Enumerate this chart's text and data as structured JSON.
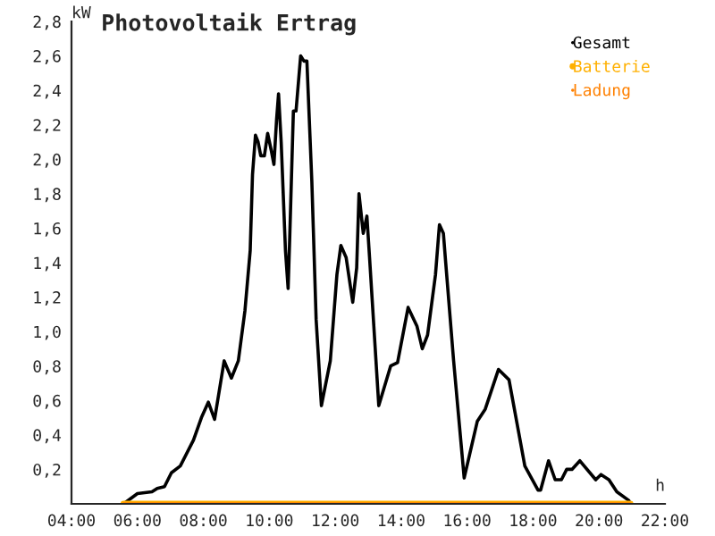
{
  "chart_data": {
    "type": "line",
    "title": "Photovoltaik Ertrag",
    "xlabel": "h",
    "ylabel": "kW",
    "series": [
      {
        "name": "Gesamt",
        "color": "#000000",
        "x": [
          5.58,
          6.0,
          6.44,
          6.6,
          6.82,
          7.03,
          7.3,
          7.7,
          7.94,
          8.15,
          8.34,
          8.63,
          8.85,
          9.06,
          9.26,
          9.42,
          9.49,
          9.58,
          9.66,
          9.74,
          9.85,
          9.95,
          10.06,
          10.14,
          10.22,
          10.28,
          10.36,
          10.49,
          10.57,
          10.62,
          10.73,
          10.81,
          10.95,
          11.05,
          11.14,
          11.29,
          11.42,
          11.58,
          11.85,
          12.05,
          12.17,
          12.33,
          12.53,
          12.65,
          12.72,
          12.85,
          12.96,
          13.04,
          13.32,
          13.68,
          13.89,
          14.21,
          14.48,
          14.64,
          14.8,
          15.04,
          15.16,
          15.28,
          15.35,
          15.59,
          15.91,
          16.31,
          16.55,
          16.95,
          17.27,
          17.75,
          18.15,
          18.23,
          18.47,
          18.67,
          18.86,
          19.02,
          19.18,
          19.42,
          19.9,
          20.06,
          20.3,
          20.54,
          20.9,
          20.95
        ],
        "values": [
          0,
          0.06,
          0.07,
          0.09,
          0.1,
          0.18,
          0.22,
          0.37,
          0.5,
          0.59,
          0.49,
          0.83,
          0.73,
          0.83,
          1.12,
          1.47,
          1.91,
          2.14,
          2.1,
          2.02,
          2.02,
          2.15,
          2.05,
          1.97,
          2.23,
          2.38,
          2.1,
          1.47,
          1.25,
          1.55,
          2.28,
          2.28,
          2.6,
          2.57,
          2.57,
          1.87,
          1.07,
          0.57,
          0.83,
          1.33,
          1.5,
          1.43,
          1.17,
          1.37,
          1.8,
          1.57,
          1.67,
          1.43,
          0.57,
          0.8,
          0.82,
          1.14,
          1.03,
          0.9,
          0.98,
          1.33,
          1.62,
          1.57,
          1.4,
          0.83,
          0.15,
          0.48,
          0.55,
          0.78,
          0.72,
          0.22,
          0.08,
          0.08,
          0.25,
          0.14,
          0.14,
          0.2,
          0.2,
          0.25,
          0.14,
          0.17,
          0.14,
          0.07,
          0.02,
          0
        ]
      },
      {
        "name": "Batterie",
        "color": "#ffb000",
        "x": [
          5.58,
          20.95
        ],
        "values": [
          0,
          0
        ]
      },
      {
        "name": "Ladung",
        "color": "#ff8000",
        "x": [
          5.58,
          20.95
        ],
        "values": [
          0,
          0
        ]
      }
    ],
    "xlim": [
      4,
      22
    ],
    "ylim": [
      0,
      2.8
    ],
    "xticks": [
      {
        "value": 4,
        "label": "04:00"
      },
      {
        "value": 6,
        "label": "06:00"
      },
      {
        "value": 8,
        "label": "08:00"
      },
      {
        "value": 10,
        "label": "10:00"
      },
      {
        "value": 12,
        "label": "12:00"
      },
      {
        "value": 14,
        "label": "14:00"
      },
      {
        "value": 16,
        "label": "16:00"
      },
      {
        "value": 18,
        "label": "18:00"
      },
      {
        "value": 20,
        "label": "20:00"
      },
      {
        "value": 22,
        "label": "22:00"
      }
    ],
    "yticks": [
      {
        "value": 0.2,
        "label": "0,2"
      },
      {
        "value": 0.4,
        "label": "0,4"
      },
      {
        "value": 0.6,
        "label": "0,6"
      },
      {
        "value": 0.8,
        "label": "0,8"
      },
      {
        "value": 1.0,
        "label": "1,0"
      },
      {
        "value": 1.2,
        "label": "1,2"
      },
      {
        "value": 1.4,
        "label": "1,4"
      },
      {
        "value": 1.6,
        "label": "1,6"
      },
      {
        "value": 1.8,
        "label": "1,8"
      },
      {
        "value": 2.0,
        "label": "2,0"
      },
      {
        "value": 2.2,
        "label": "2,2"
      },
      {
        "value": 2.4,
        "label": "2,4"
      },
      {
        "value": 2.6,
        "label": "2,6"
      },
      {
        "value": 2.8,
        "label": "2,8"
      }
    ],
    "grid": false,
    "legend": "top right",
    "marker": "none",
    "line_style": "solid"
  }
}
